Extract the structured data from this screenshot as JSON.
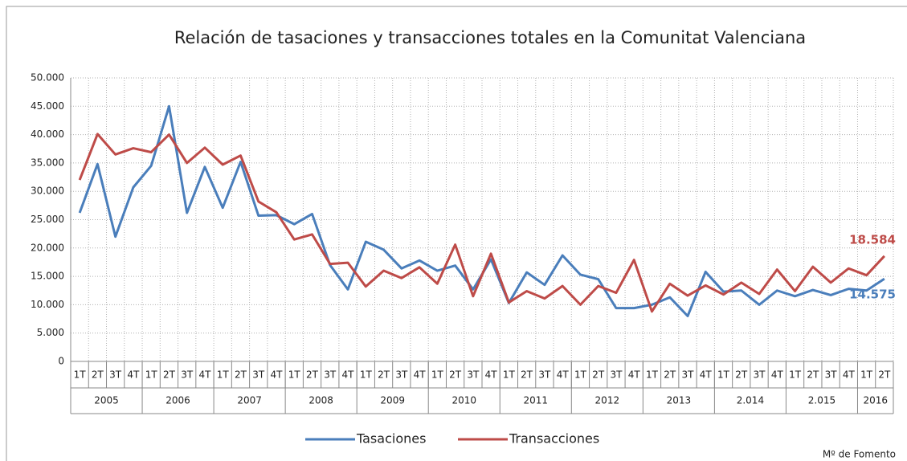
{
  "chart_data": {
    "type": "line",
    "title": "Relación de tasaciones y transacciones totales en la Comunitat Valenciana",
    "categories": [
      "1T",
      "2T",
      "3T",
      "4T",
      "1T",
      "2T",
      "3T",
      "4T",
      "1T",
      "2T",
      "3T",
      "4T",
      "1T",
      "2T",
      "3T",
      "4T",
      "1T",
      "2T",
      "3T",
      "4T",
      "1T",
      "2T",
      "3T",
      "4T",
      "1T",
      "2T",
      "3T",
      "4T",
      "1T",
      "2T",
      "3T",
      "4T",
      "1T",
      "2T",
      "3T",
      "4T",
      "1T",
      "2T",
      "3T",
      "4T",
      "1T",
      "2T",
      "3T",
      "4T",
      "1T",
      "2T"
    ],
    "year_groups": [
      {
        "label": "2005",
        "span": 4
      },
      {
        "label": "2006",
        "span": 4
      },
      {
        "label": "2007",
        "span": 4
      },
      {
        "label": "2008",
        "span": 4
      },
      {
        "label": "2009",
        "span": 4
      },
      {
        "label": "2010",
        "span": 4
      },
      {
        "label": "2011",
        "span": 4
      },
      {
        "label": "2012",
        "span": 4
      },
      {
        "label": "2013",
        "span": 4
      },
      {
        "label": "2.014",
        "span": 4
      },
      {
        "label": "2.015",
        "span": 4
      },
      {
        "label": "2016",
        "span": 2
      }
    ],
    "series": [
      {
        "name": "Tasaciones",
        "color": "#4a7ebb",
        "values": [
          26200,
          34800,
          22000,
          30700,
          34500,
          45000,
          26200,
          34300,
          27100,
          35200,
          25700,
          25800,
          24200,
          26000,
          17000,
          12700,
          21100,
          19700,
          16400,
          17800,
          16000,
          16900,
          12700,
          18000,
          10300,
          15700,
          13500,
          18700,
          15300,
          14500,
          9400,
          9400,
          10000,
          11300,
          8000,
          15800,
          12300,
          12500,
          10000,
          12500,
          11500,
          12600,
          11700,
          12800,
          12500,
          14575
        ],
        "value_labels": [
          null,
          null,
          null,
          null,
          null,
          null,
          null,
          null,
          null,
          null,
          null,
          null,
          null,
          null,
          null,
          null,
          null,
          null,
          null,
          null,
          null,
          null,
          null,
          null,
          null,
          null,
          null,
          null,
          null,
          null,
          null,
          null,
          null,
          null,
          null,
          null,
          null,
          null,
          null,
          null,
          null,
          null,
          null,
          null,
          null,
          "14.575"
        ]
      },
      {
        "name": "Transacciones",
        "color": "#be4b48",
        "values": [
          32000,
          40100,
          36500,
          37600,
          36900,
          40000,
          35000,
          37700,
          34700,
          36300,
          28200,
          26300,
          21500,
          22400,
          17200,
          17400,
          13200,
          16000,
          14700,
          16600,
          13700,
          20600,
          11500,
          19000,
          10400,
          12400,
          11100,
          13300,
          10000,
          13300,
          12100,
          17900,
          8800,
          13700,
          11600,
          13400,
          11800,
          13900,
          11900,
          16200,
          12400,
          16700,
          13900,
          16400,
          15200,
          18584
        ],
        "value_labels": [
          null,
          null,
          null,
          null,
          null,
          null,
          null,
          null,
          null,
          null,
          null,
          null,
          null,
          null,
          null,
          null,
          null,
          null,
          null,
          null,
          null,
          null,
          null,
          null,
          null,
          null,
          null,
          null,
          null,
          null,
          null,
          null,
          null,
          null,
          null,
          null,
          null,
          null,
          null,
          null,
          null,
          null,
          null,
          null,
          null,
          "18.584"
        ]
      }
    ],
    "ylim": [
      0,
      50000
    ],
    "yticks": [
      0,
      {
        "value": 5000,
        "label": "5.000"
      },
      {
        "value": 10000,
        "label": "10.000"
      },
      {
        "value": 15000,
        "label": "15.000"
      },
      {
        "value": 20000,
        "label": "20.000"
      },
      {
        "value": 25000,
        "label": "25.000"
      },
      {
        "value": 30000,
        "label": "30.000"
      },
      {
        "value": 35000,
        "label": "35.000"
      },
      {
        "value": 40000,
        "label": "40.000"
      },
      {
        "value": 45000,
        "label": "45.000"
      },
      {
        "value": 50000,
        "label": "50.000"
      }
    ],
    "grid": true,
    "legend": "bottom",
    "source": "Mº de Fomento"
  }
}
